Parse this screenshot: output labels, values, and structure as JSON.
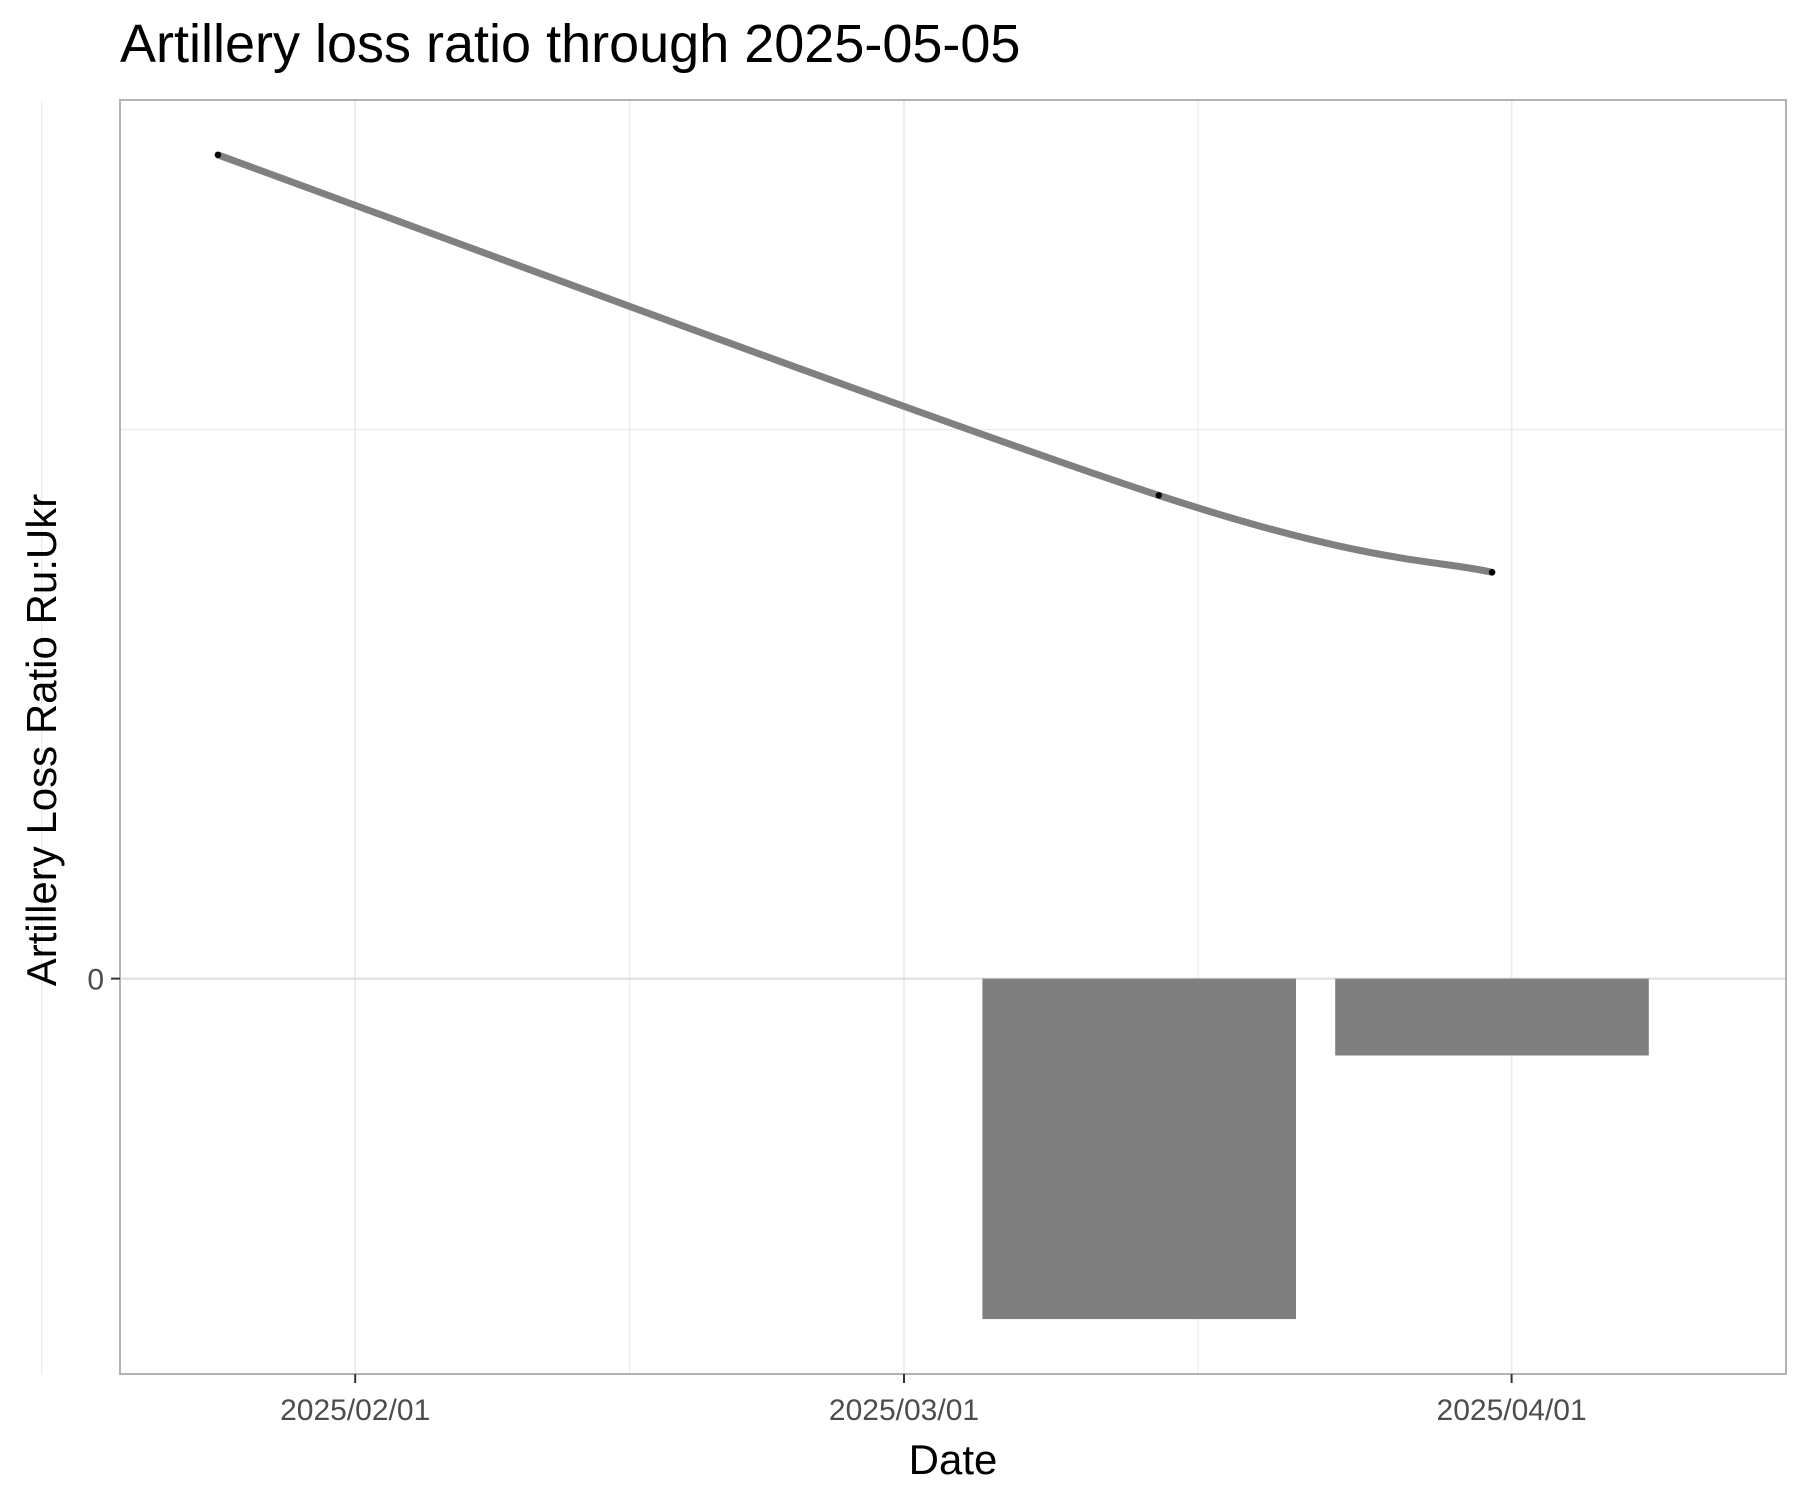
{
  "chart_data": {
    "type": "bar",
    "title": "Artillery loss ratio through 2025-05-05",
    "xlabel": "Date",
    "ylabel": "Artillery Loss Ratio Ru:Ukr",
    "x_type": "date",
    "xlim": [
      "2025-01-20",
      "2025-04-15"
    ],
    "ylim": [
      -0.72,
      1.6
    ],
    "x_ticks": [
      {
        "value": "2025-02-01",
        "label": "2025/02/01"
      },
      {
        "value": "2025-03-01",
        "label": "2025/03/01"
      },
      {
        "value": "2025-04-01",
        "label": "2025/04/01"
      }
    ],
    "x_minor_ticks": [
      "2025-01-16",
      "2025-02-15",
      "2025-03-16"
    ],
    "y_ticks": [
      {
        "value": 0,
        "label": "0"
      }
    ],
    "y_minor_ticks": [
      1.0
    ],
    "series": [
      {
        "type": "bar",
        "bars": [
          {
            "x_start": "2025-03-05",
            "x_end": "2025-03-21",
            "value": -0.62
          },
          {
            "x_start": "2025-03-23",
            "x_end": "2025-04-08",
            "value": -0.14
          }
        ]
      },
      {
        "type": "line",
        "smooth": true,
        "points": [
          {
            "x": "2025-01-25",
            "y": 1.5
          },
          {
            "x": "2025-03-14",
            "y": 0.88
          },
          {
            "x": "2025-03-31",
            "y": 0.74
          }
        ]
      }
    ],
    "grid": true,
    "colors": {
      "bar": "#7f7f7f",
      "line": "#808080",
      "point": "#000000",
      "grid": "#ebebeb",
      "panel_border": "#b3b3b3",
      "tick_text": "#4d4d4d"
    }
  }
}
